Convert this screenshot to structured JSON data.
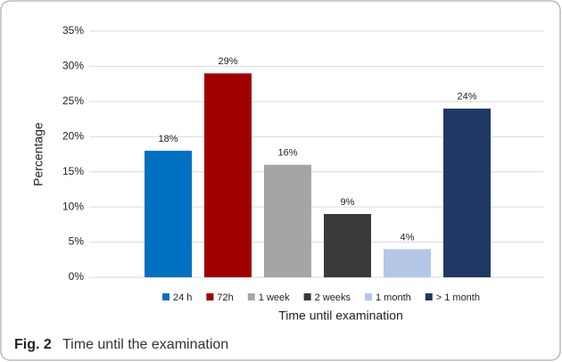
{
  "chart_data": {
    "type": "bar",
    "categories": [
      "24 h",
      "72h",
      "1 week",
      "2 weeks",
      "1 month",
      "> 1 month"
    ],
    "values": [
      18,
      29,
      16,
      9,
      4,
      24
    ],
    "value_labels": [
      "18%",
      "29%",
      "16%",
      "9%",
      "4%",
      "24%"
    ],
    "colors": [
      "#0070c0",
      "#a00000",
      "#a5a5a5",
      "#3a3a3a",
      "#b4c7e7",
      "#1f3864"
    ],
    "ylim": [
      0,
      35
    ],
    "yticks": [
      {
        "value": 0,
        "label": "0%"
      },
      {
        "value": 5,
        "label": "5%"
      },
      {
        "value": 10,
        "label": "10%"
      },
      {
        "value": 15,
        "label": "15%"
      },
      {
        "value": 20,
        "label": "20%"
      },
      {
        "value": 25,
        "label": "25%"
      },
      {
        "value": 30,
        "label": "30%"
      },
      {
        "value": 35,
        "label": "35%"
      }
    ],
    "ylabel": "Percentage",
    "xlabel": "Time until examination",
    "grid": true,
    "legend": "bottom"
  },
  "caption": {
    "label": "Fig. 2",
    "text": "Time until the examination"
  }
}
